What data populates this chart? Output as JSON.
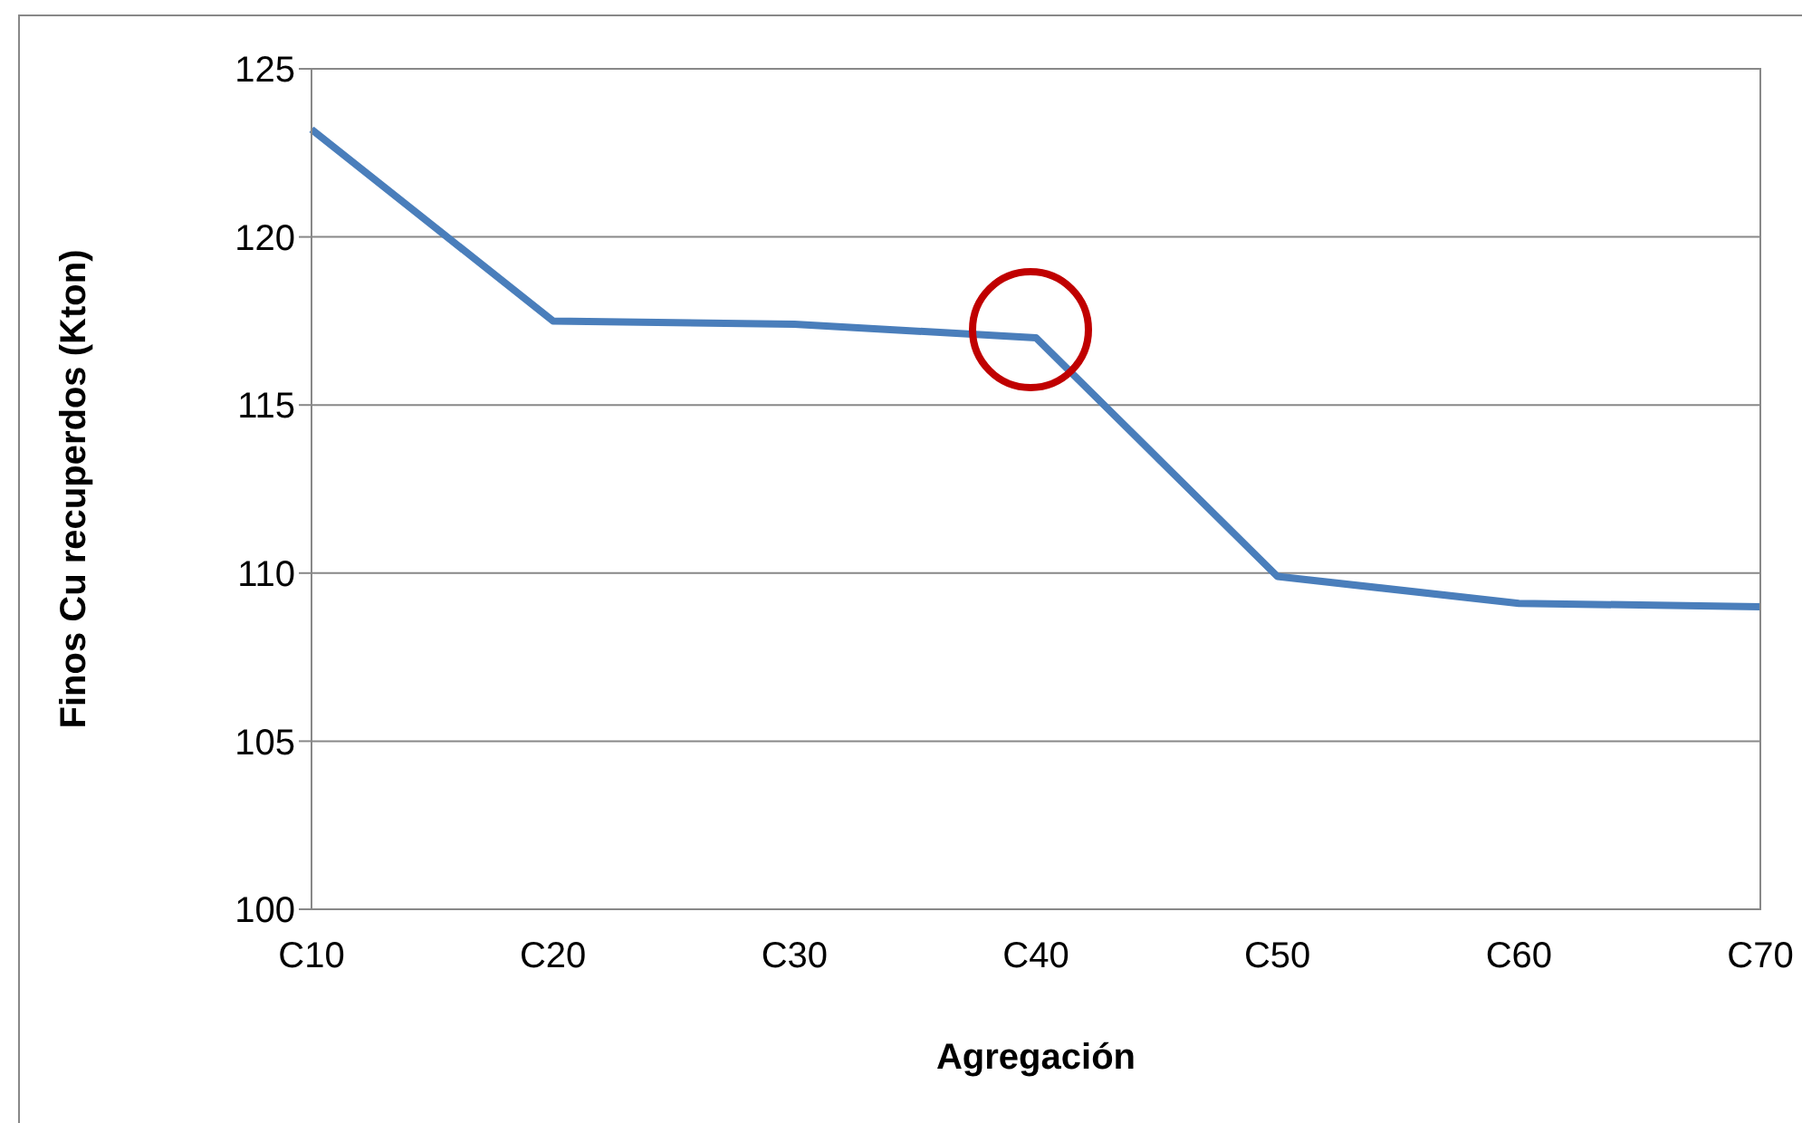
{
  "chart_data": {
    "type": "line",
    "xlabel": "Agregación",
    "ylabel": "Finos Cu recuperdos  (Kton)",
    "categories": [
      "C10",
      "C20",
      "C30",
      "C40",
      "C50",
      "C60",
      "C70"
    ],
    "series": [
      {
        "color": "#4a7ebb",
        "values": [
          123.2,
          117.5,
          117.4,
          117.0,
          109.9,
          109.1,
          109.0
        ]
      }
    ],
    "ylim": [
      100,
      125
    ],
    "yticks": [
      100,
      105,
      110,
      115,
      120,
      125
    ],
    "grid": "y",
    "legend": false,
    "marker": "none",
    "line_style": "solid"
  }
}
